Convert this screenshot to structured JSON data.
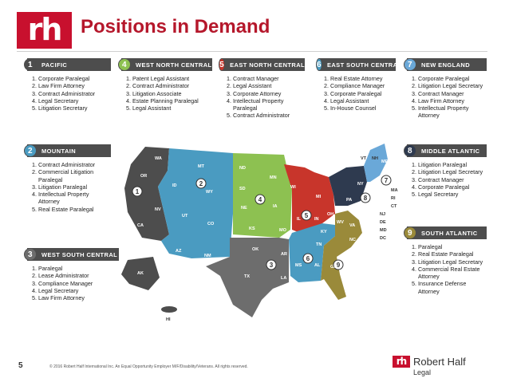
{
  "header": {
    "logo_text": "rh",
    "title": "Positions in Demand"
  },
  "regions": [
    {
      "num": "1",
      "name": "PACIFIC",
      "color": "#4d4d4d",
      "items": [
        "Corporate Paralegal",
        "Law Firm Attorney",
        "Contract Administrator",
        "Legal Secretary",
        "Litigation Secretary"
      ]
    },
    {
      "num": "2",
      "name": "MOUNTAIN",
      "color": "#4a9bc1",
      "items": [
        "Contract Administrator",
        "Commercial Litigation Paralegal",
        "Litigation Paralegal",
        "Intellectual Property Attorney",
        "Real Estate Paralegal"
      ]
    },
    {
      "num": "3",
      "name": "WEST SOUTH CENTRAL",
      "color": "#6d6d6d",
      "items": [
        "Paralegal",
        "Lease Administrator",
        "Compliance Manager",
        "Legal Secretary",
        "Law Firm Attorney"
      ]
    },
    {
      "num": "4",
      "name": "WEST NORTH CENTRAL",
      "color": "#8dc151",
      "items": [
        "Patent Legal Assistant",
        "Contract Administrator",
        "Litigation Associate",
        "Estate Planning Paralegal",
        "Legal Assistant"
      ]
    },
    {
      "num": "5",
      "name": "EAST NORTH CENTRAL",
      "color": "#c8352b",
      "items": [
        "Contract Manager",
        "Legal Assistant",
        "Corporate Attorney",
        "Intellectual Property Paralegal",
        "Contract Administrator"
      ]
    },
    {
      "num": "6",
      "name": "EAST SOUTH CENTRAL",
      "color": "#4a9bc1",
      "items": [
        "Real Estate Attorney",
        "Compliance Manager",
        "Corporate Paralegal",
        "Legal Assistant",
        "In-House Counsel"
      ]
    },
    {
      "num": "7",
      "name": "NEW ENGLAND",
      "color": "#6aa8d8",
      "items": [
        "Corporate Paralegal",
        "Litigation Legal Secretary",
        "Contract Manager",
        "Law Firm Attorney",
        "Intellectual Property Attorney"
      ]
    },
    {
      "num": "8",
      "name": "MIDDLE ATLANTIC",
      "color": "#2e3a4f",
      "items": [
        "Litigation Paralegal",
        "Litigation Legal Secretary",
        "Contract Manager",
        "Corporate Paralegal",
        "Legal Secretary"
      ]
    },
    {
      "num": "9",
      "name": "SOUTH ATLANTIC",
      "color": "#9a8a3a",
      "items": [
        "Paralegal",
        "Real Estate Paralegal",
        "Litigation Legal Secretary",
        "Commercial Real Estate Attorney",
        "Insurance Defense Attorney"
      ]
    }
  ],
  "map_labels": [
    "WA",
    "OR",
    "CA",
    "ID",
    "NV",
    "MT",
    "WY",
    "UT",
    "CO",
    "AZ",
    "NM",
    "ND",
    "SD",
    "NE",
    "KS",
    "MN",
    "IA",
    "MO",
    "OK",
    "TX",
    "AR",
    "LA",
    "WI",
    "IL",
    "MI",
    "IN",
    "OH",
    "KY",
    "TN",
    "MS",
    "AL",
    "GA",
    "FL",
    "SC",
    "NC",
    "VA",
    "WV",
    "PA",
    "NY",
    "VT",
    "NH",
    "ME",
    "MA",
    "RI",
    "CT",
    "NJ",
    "DE",
    "MD",
    "DC",
    "AK",
    "HI"
  ],
  "footer": {
    "page_number": "5",
    "copyright": "© 2016 Robert Half International Inc. An Equal Opportunity Employer M/F/Disability/Veterans. All rights reserved.",
    "brand_mark": "rh",
    "brand": "Robert Half",
    "brand_sub": "Legal"
  }
}
